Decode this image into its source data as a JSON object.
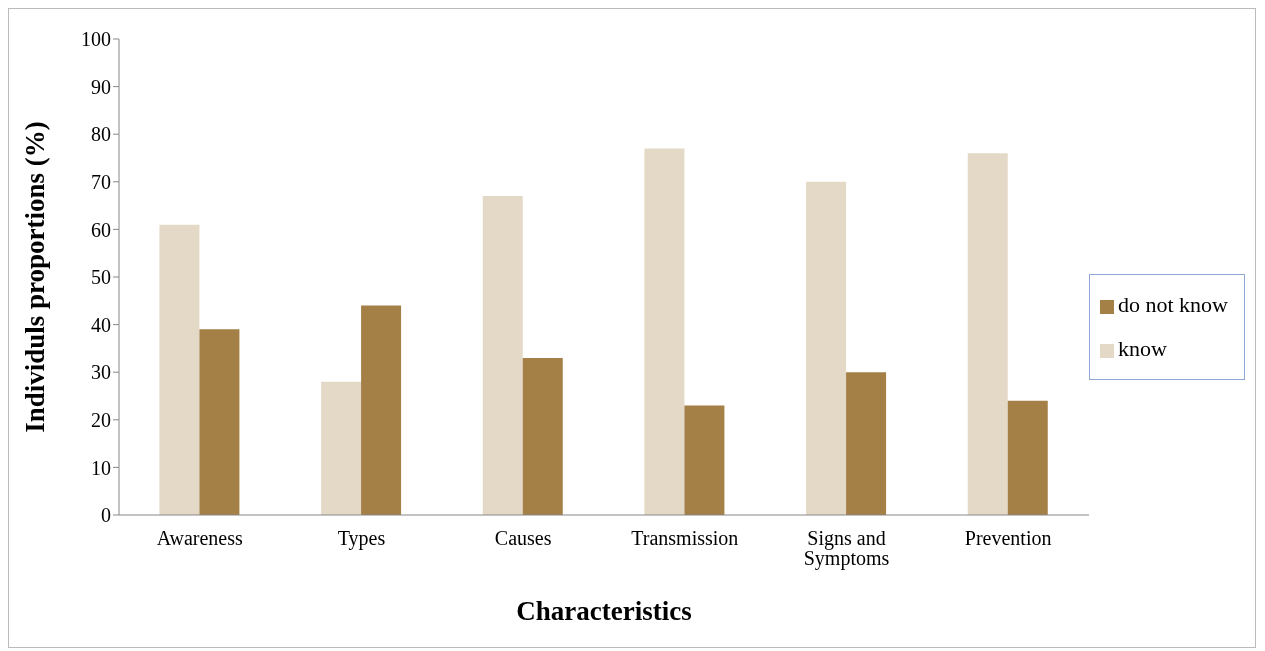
{
  "chart_data": {
    "type": "bar",
    "xlabel": "Characteristics",
    "ylabel": "Individuls proportions (%)",
    "categories": [
      "Awareness",
      "Types",
      "Causes",
      "Transmission",
      "Signs and Symptoms",
      "Prevention"
    ],
    "series": [
      {
        "name": "know",
        "color": "#e3d9c6",
        "values": [
          61,
          28,
          67,
          77,
          70,
          76
        ]
      },
      {
        "name": "do not know",
        "color": "#a47f46",
        "values": [
          39,
          44,
          33,
          23,
          30,
          24
        ]
      }
    ],
    "ylim": [
      0,
      100
    ],
    "yticks": [
      0,
      10,
      20,
      30,
      40,
      50,
      60,
      70,
      80,
      90,
      100
    ],
    "grid": false,
    "legend": "right"
  }
}
